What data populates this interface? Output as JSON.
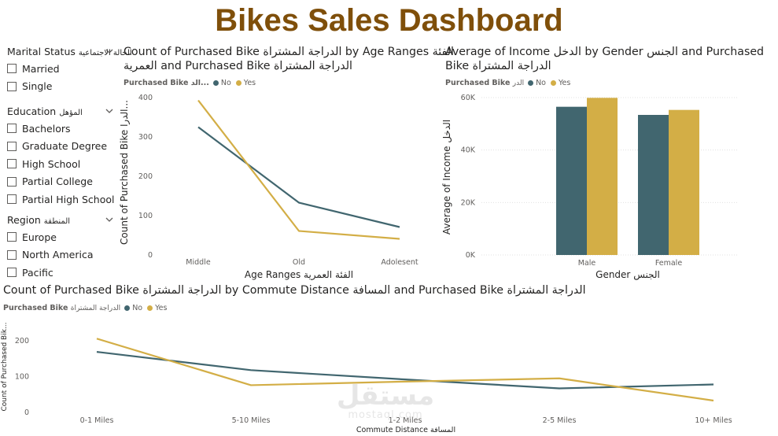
{
  "title": "Bikes Sales Dashboard",
  "colors": {
    "no": "#41666f",
    "yes": "#d3ae46",
    "title": "#7f4f0a"
  },
  "slicers": {
    "marital": {
      "title": "Marital Status",
      "title_ar": "الحالة الاجتماعية",
      "options": [
        "Married",
        "Single"
      ]
    },
    "education": {
      "title": "Education",
      "title_ar": "المؤهل",
      "options": [
        "Bachelors",
        "Graduate Degree",
        "High School",
        "Partial College",
        "Partial High School"
      ]
    },
    "region": {
      "title": "Region",
      "title_ar": "المنطقة",
      "options": [
        "Europe",
        "North America",
        "Pacific"
      ]
    }
  },
  "legend": {
    "title": "Purchased Bike",
    "title_ar": "الدراجة المشتراة",
    "title_trunc": "Purchased Bike الد...",
    "no": "No",
    "yes": "Yes"
  },
  "age_chart": {
    "title_line1": "Count of Purchased Bike الدراجة المشتراة by Age Ranges الفئة",
    "title_line2": "العمرية and Purchased Bike الدراجة المشتراة",
    "xlabel": "Age Ranges الفئة العمرية",
    "ylabel": "Count of Purchased Bike الدرا...",
    "yticks": [
      "0",
      "100",
      "200",
      "300",
      "400"
    ]
  },
  "income_chart": {
    "title_line1": "Average of Income الدخل by Gender الجنس and Purchased",
    "title_line2": "Bike الدراجة المشتراة",
    "xlabel": "Gender الجنس",
    "ylabel": "Average of Income الدخل",
    "yticks": [
      "0K",
      "20K",
      "40K",
      "60K"
    ]
  },
  "commute_chart": {
    "title": "Count of Purchased Bike الدراجة المشتراة by Commute Distance المسافة and Purchased Bike الدراجة المشتراة",
    "xlabel": "Commute Distance المسافة",
    "ylabel": "Count of Purchased Bik...",
    "yticks": [
      "0",
      "100",
      "200"
    ]
  },
  "watermark": {
    "line1": "مستقل",
    "line2": "mostaql.com"
  },
  "chart_data": [
    {
      "type": "line",
      "title": "Count of Purchased Bike الدراجة المشتراة by Age Ranges الفئة العمرية and Purchased Bike الدراجة المشتراة",
      "xlabel": "Age Ranges الفئة العمرية",
      "ylabel": "Count of Purchased Bike الدرا...",
      "categories": [
        "Middle",
        "Old",
        "Adolesent"
      ],
      "ylim": [
        0,
        400
      ],
      "grid": false,
      "legend": "top-left",
      "series": [
        {
          "name": "No",
          "values": [
            325,
            133,
            71
          ]
        },
        {
          "name": "Yes",
          "values": [
            393,
            61,
            41
          ]
        }
      ]
    },
    {
      "type": "bar",
      "title": "Average of Income الدخل by Gender الجنس and Purchased Bike الدراجة المشتراة",
      "xlabel": "Gender الجنس",
      "ylabel": "Average of Income الدخل",
      "categories": [
        "Male",
        "Female"
      ],
      "ylim": [
        0,
        60000
      ],
      "grid": true,
      "legend": "top-left",
      "series": [
        {
          "name": "No",
          "values": [
            56500,
            53400
          ]
        },
        {
          "name": "Yes",
          "values": [
            59900,
            55300
          ]
        }
      ]
    },
    {
      "type": "line",
      "title": "Count of Purchased Bike الدراجة المشتراة by Commute Distance المسافة and Purchased Bike الدراجة المشتراة",
      "xlabel": "Commute Distance المسافة",
      "ylabel": "Count of Purchased Bik...",
      "categories": [
        "0-1 Miles",
        "5-10 Miles",
        "1-2 Miles",
        "2-5 Miles",
        "10+ Miles"
      ],
      "ylim": [
        0,
        200
      ],
      "grid": false,
      "legend": "top-left",
      "series": [
        {
          "name": "No",
          "values": [
            169,
            118,
            92,
            67,
            78
          ]
        },
        {
          "name": "Yes",
          "values": [
            206,
            76,
            86,
            95,
            33
          ]
        }
      ]
    }
  ]
}
